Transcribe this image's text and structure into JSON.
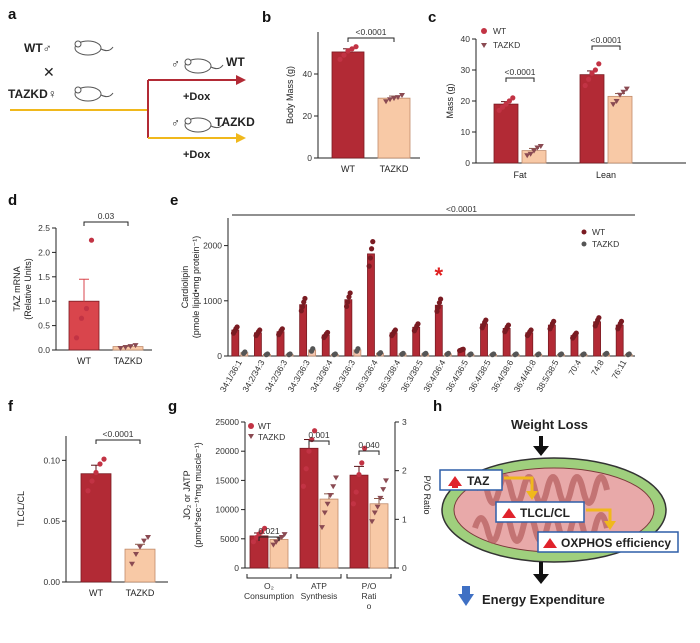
{
  "colors": {
    "wt": "#b22a35",
    "tazkd": "#f8c9a6",
    "wt_edge": "#7a1b22",
    "kd_edge": "#c08a6a",
    "point_wt": "#c23344",
    "point_kd": "#8a4a52",
    "mito_outer": "#9fcf7d",
    "mito_inner": "#e8a9a9",
    "arrow_red": "#e0232c",
    "arrow_yellow": "#f0b81c",
    "arrow_blue": "#3f70c4",
    "sig_star": "#e02020"
  },
  "panels": {
    "a": "a",
    "b": "b",
    "c": "c",
    "d": "d",
    "e": "e",
    "f": "f",
    "g": "g",
    "h": "h"
  },
  "schema": {
    "wt_parent": "WT♂",
    "cross": "✕",
    "kd_parent": "TAZKD♀",
    "wt_child_sym": "♂",
    "wt_child": "WT",
    "dox1": "+Dox",
    "kd_child_sym": "♂",
    "kd_child": "TAZKD",
    "dox2": "+Dox",
    "icons": [
      "mouse-icon",
      "arrow-icon"
    ]
  },
  "diagram_h": {
    "title": "Weight Loss",
    "taz": "TAZ",
    "tlcl": "TLCL/CL",
    "oxphos": "OXPHOS efficiency",
    "energy": "Energy Expenditure"
  },
  "chart_data": [
    {
      "panel": "b",
      "type": "bar",
      "ylabel": "Body Mass (g)",
      "ylim": [
        0,
        60
      ],
      "yticks": [
        "0",
        "20",
        "40"
      ],
      "categories": [
        "WT",
        "TAZKD"
      ],
      "values": [
        50.5,
        28.5
      ],
      "errors": [
        1.5,
        1.0
      ],
      "points": [
        [
          47,
          49,
          51,
          52,
          53
        ],
        [
          27,
          28,
          28.5,
          29,
          30
        ]
      ],
      "annotations": [
        {
          "text": "<0.0001"
        }
      ]
    },
    {
      "panel": "c",
      "type": "bar",
      "ylabel": "Mass (g)",
      "ylim": [
        0,
        40
      ],
      "yticks": [
        "0",
        "10",
        "20",
        "30",
        "40"
      ],
      "categories": [
        "Fat",
        "Lean"
      ],
      "series": [
        {
          "name": "WT",
          "values": [
            19,
            28.5
          ],
          "errors": [
            0.8,
            1.2
          ],
          "points": [
            [
              17,
              18,
              19,
              20,
              21
            ],
            [
              25,
              27,
              29,
              30,
              32
            ]
          ]
        },
        {
          "name": "TAZKD",
          "values": [
            4,
            21.5
          ],
          "errors": [
            0.7,
            0.9
          ],
          "points": [
            [
              2.5,
              3,
              4,
              5,
              5.5
            ],
            [
              19,
              20,
              22,
              23,
              24
            ]
          ]
        }
      ],
      "legend": "top-left",
      "annotations": [
        {
          "text": "<0.0001"
        },
        {
          "text": "<0.0001"
        }
      ]
    },
    {
      "panel": "d",
      "type": "bar",
      "ylabel": "TAZ mRNA",
      "ylabel2": "(Relative Units)",
      "ylim": [
        0,
        2.5
      ],
      "yticks": [
        "0.0",
        "0.5",
        "1.0",
        "1.5",
        "2.0",
        "2.5"
      ],
      "categories": [
        "WT",
        "TAZKD"
      ],
      "values": [
        1.0,
        0.07
      ],
      "errors": [
        0.45,
        0.02
      ],
      "points": [
        [
          0.25,
          0.65,
          0.85,
          2.25
        ],
        [
          0.04,
          0.06,
          0.08,
          0.1
        ]
      ],
      "annotations": [
        {
          "text": "0.03"
        }
      ]
    },
    {
      "panel": "e",
      "type": "bar",
      "ylabel": "Cardiolipin",
      "ylabel2": "(pmole lipid•mg protein⁻¹)",
      "ylim": [
        0,
        2500
      ],
      "yticks": [
        "0",
        "1000",
        "2000"
      ],
      "categories": [
        "34:1/36:1",
        "34:2/34:3",
        "34:2/36:3",
        "34:3/36:3",
        "34:3/36:4",
        "36:3/36:3",
        "36:3/36:4",
        "36:3/38:4",
        "36:3/38:5",
        "36:4/36:4",
        "36:4/36:5",
        "36:4/38:5",
        "36:4/38:6",
        "36:4/40:8",
        "38:5/38:5",
        "70:4",
        "74:8",
        "76:11"
      ],
      "series": [
        {
          "name": "WT",
          "values": [
            470,
            420,
            440,
            930,
            380,
            1020,
            1850,
            420,
            520,
            920,
            110,
            580,
            500,
            420,
            560,
            370,
            620,
            560
          ]
        },
        {
          "name": "TAZKD",
          "values": [
            60,
            30,
            30,
            110,
            30,
            110,
            50,
            40,
            40,
            40,
            30,
            30,
            30,
            30,
            30,
            30,
            40,
            30
          ]
        }
      ],
      "legend": "top-right",
      "annotations": [
        {
          "text": "<0.0001"
        },
        {
          "text": "*"
        }
      ]
    },
    {
      "panel": "f",
      "type": "bar",
      "ylabel": "TLCL/CL",
      "ylim": [
        0,
        0.12
      ],
      "yticks": [
        "0.00",
        "0.05",
        "0.10"
      ],
      "categories": [
        "WT",
        "TAZKD"
      ],
      "values": [
        0.089,
        0.027
      ],
      "errors": [
        0.007,
        0.004
      ],
      "points": [
        [
          0.075,
          0.083,
          0.09,
          0.097,
          0.101
        ],
        [
          0.015,
          0.023,
          0.029,
          0.034,
          0.037
        ]
      ],
      "annotations": [
        {
          "text": "<0.0001"
        }
      ]
    },
    {
      "panel": "g",
      "type": "bar",
      "ylabel": "JO₂ or JATP",
      "ylabel2": "(pmol*sec⁻¹*mg muscle⁻¹)",
      "ylabel_right": "P/O Ratio",
      "ylim": [
        0,
        25000
      ],
      "yticks": [
        "0",
        "5000",
        "10000",
        "15000",
        "20000",
        "25000"
      ],
      "ylim_right": [
        0,
        3
      ],
      "yticks_right": [
        "0",
        "1",
        "2",
        "3"
      ],
      "categories": [
        "O₂ Consumption",
        "ATP Synthesis",
        "P/O Rati o"
      ],
      "group_labels": [
        [
          "O₂",
          "Consumption"
        ],
        [
          "ATP",
          "Synthesis"
        ],
        [
          "P/O",
          "Rati",
          "o"
        ]
      ],
      "series": [
        {
          "name": "WT",
          "values": [
            5500,
            20500,
            15900
          ],
          "errors": [
            500,
            1500,
            1500
          ],
          "points": [
            [
              4500,
              5200,
              5800,
              6200,
              6800
            ],
            [
              14000,
              17000,
              20000,
              22000,
              23500
            ],
            [
              11000,
              13000,
              16000,
              18000,
              20500
            ]
          ]
        },
        {
          "name": "TAZKD",
          "values": [
            4900,
            11800,
            11000
          ],
          "errors": [
            400,
            900,
            900
          ],
          "points": [
            [
              4000,
              4500,
              5000,
              5300,
              5800
            ],
            [
              7000,
              9500,
              11000,
              12500,
              14000,
              15500
            ],
            [
              8000,
              9500,
              10500,
              12000,
              13500,
              15000
            ]
          ]
        }
      ],
      "legend": "top-left",
      "annotations": [
        {
          "text": "0.021"
        },
        {
          "text": "0.001"
        },
        {
          "text": "0.040"
        }
      ]
    }
  ]
}
